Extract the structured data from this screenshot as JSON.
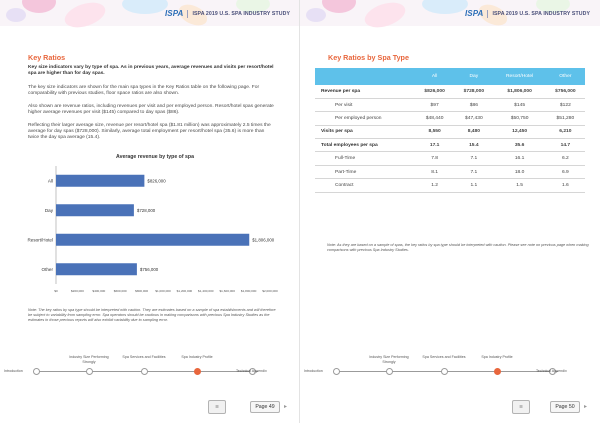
{
  "header": {
    "logo": "ISPA",
    "title": "ISPA 2019 U.S. SPA INDUSTRY STUDY"
  },
  "left": {
    "section_title": "Key Ratios",
    "intro_bold": "Key size indicators vary by type of spa. As in previous years, average revenues and visits per resort/hotel spa are higher than for day spas.",
    "para1": "The key size indicators are shown for the main spa types in the Key Ratios table on the following page. For comparability with previous studies, floor space ratios are also shown.",
    "para2": "Also shown are revenue ratios, including revenues per visit and per employed person. Resort/hotel spas generate higher average revenues per visit ($145) compared to day spas ($86).",
    "para3": "Reflecting their larger average size, revenue per resort/hotel spa ($1.81 million) was approximately 2.5 times the average for day spas ($728,000). Similarly, average total employment per resort/hotel spa (35.6) is more than twice the day spa average (15.4).",
    "note": "Note: The key ratios by spa type should be interpreted with caution. They are estimates based on a sample of spa establishments and will therefore be subject to variability from sampling error. Spa operators should be cautious in making comparisons with previous Spa Industry Studies as the estimates in those previous reports will also exhibit variability due to sampling error.",
    "page_label": "Page 49"
  },
  "chart_data": {
    "type": "bar",
    "orientation": "horizontal",
    "title": "Average revenue by type of spa",
    "categories": [
      "All",
      "Day",
      "Resort/Hotel",
      "Other"
    ],
    "values": [
      826000,
      728000,
      1806000,
      756000
    ],
    "value_labels": [
      "$826,000",
      "$728,000",
      "$1,806,000",
      "$756,000"
    ],
    "xlim": [
      0,
      2000000
    ],
    "x_ticks": [
      0,
      200000,
      400000,
      600000,
      800000,
      1000000,
      1200000,
      1400000,
      1600000,
      1800000,
      2000000
    ],
    "x_tick_labels": [
      "$0",
      "$200,000",
      "$400,000",
      "$600,000",
      "$800,000",
      "$1,000,000",
      "$1,200,000",
      "$1,400,000",
      "$1,600,000",
      "$1,800,000",
      "$2,000,000"
    ],
    "bar_color": "#4a72b8",
    "grid": false,
    "legend": "none"
  },
  "right": {
    "section_title": "Key Ratios by Spa Type",
    "columns": [
      "All",
      "Day",
      "Resort/Hotel",
      "Other"
    ],
    "rows": [
      {
        "label": "Revenue per spa",
        "type": "main",
        "values": [
          "$826,000",
          "$728,000",
          "$1,806,000",
          "$756,000"
        ]
      },
      {
        "label": "Per visit",
        "type": "sub",
        "values": [
          "$97",
          "$86",
          "$145",
          "$122"
        ]
      },
      {
        "label": "Per employed person",
        "type": "sub",
        "values": [
          "$48,440",
          "$47,430",
          "$50,750",
          "$51,280"
        ]
      },
      {
        "label": "Visits per spa",
        "type": "main",
        "values": [
          "8,550",
          "8,480",
          "12,450",
          "6,210"
        ]
      },
      {
        "label": "Total employees per spa",
        "type": "main",
        "values": [
          "17.1",
          "15.4",
          "35.6",
          "14.7"
        ]
      },
      {
        "label": "Full-Time",
        "type": "sub",
        "values": [
          "7.8",
          "7.1",
          "16.1",
          "6.2"
        ]
      },
      {
        "label": "Part-Time",
        "type": "sub",
        "values": [
          "8.1",
          "7.1",
          "18.0",
          "6.9"
        ]
      },
      {
        "label": "Contract",
        "type": "sub",
        "values": [
          "1.2",
          "1.1",
          "1.5",
          "1.6"
        ]
      }
    ],
    "note": "Note: As they are based on a sample of spas, the key ratios by spa type should be interpreted with caution. Please see note on previous page when making comparisons with previous Spa Industry Studies.",
    "page_label": "Page 50"
  },
  "nav": {
    "items": [
      "Introduction",
      "Industry Size Performing Strongly",
      "Spa Services and Facilities",
      "Spa Industry Profile",
      "Technical Appendix"
    ],
    "active_index": 3,
    "active_color": "#e8663c"
  },
  "colors": {
    "accent": "#e8663c",
    "table_header": "#5ec1ea",
    "bar": "#4a72b8"
  }
}
